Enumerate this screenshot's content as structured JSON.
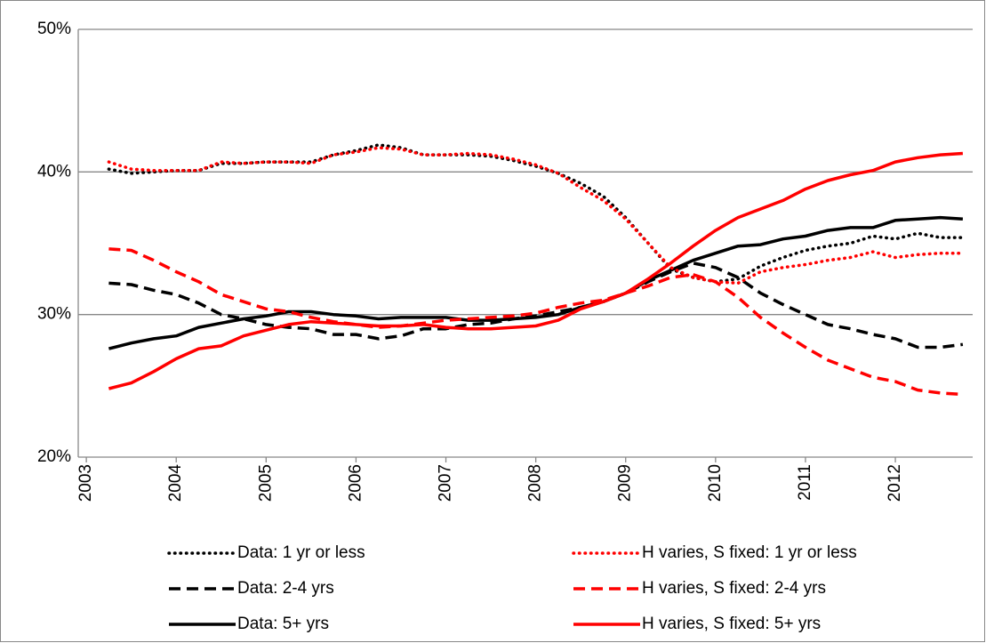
{
  "chart_data": {
    "type": "line",
    "x": [
      2003.25,
      2003.5,
      2003.75,
      2004,
      2004.25,
      2004.5,
      2004.75,
      2005,
      2005.25,
      2005.5,
      2005.75,
      2006,
      2006.25,
      2006.5,
      2006.75,
      2007,
      2007.25,
      2007.5,
      2007.75,
      2008,
      2008.25,
      2008.5,
      2008.75,
      2009,
      2009.25,
      2009.5,
      2009.75,
      2010,
      2010.25,
      2010.5,
      2010.75,
      2011,
      2011.25,
      2011.5,
      2011.75,
      2012,
      2012.25,
      2012.5,
      2012.75
    ],
    "xlim": [
      2002.91,
      2012.86
    ],
    "xticks": [
      2003,
      2004,
      2005,
      2006,
      2007,
      2008,
      2009,
      2010,
      2011,
      2012
    ],
    "ylim": [
      20,
      50
    ],
    "yticks": [
      {
        "value": 20,
        "label": "20%"
      },
      {
        "value": 30,
        "label": "30%"
      },
      {
        "value": 40,
        "label": "40%"
      },
      {
        "value": 50,
        "label": "50%"
      }
    ],
    "grid": true,
    "series": [
      {
        "name": "Data: 1 yr or less",
        "color": "#000000",
        "dash": "dotted",
        "values": [
          40.2,
          39.9,
          40.0,
          40.1,
          40.1,
          40.6,
          40.6,
          40.7,
          40.7,
          40.7,
          41.2,
          41.5,
          41.9,
          41.7,
          41.2,
          41.2,
          41.2,
          41.1,
          40.8,
          40.4,
          39.9,
          39.2,
          38.3,
          36.8,
          35.0,
          33.2,
          32.6,
          32.3,
          32.5,
          33.4,
          34.0,
          34.5,
          34.8,
          35.0,
          35.5,
          35.3,
          35.7,
          35.4,
          35.4
        ]
      },
      {
        "name": "Data: 2-4 yrs",
        "color": "#000000",
        "dash": "dashed",
        "values": [
          32.2,
          32.1,
          31.7,
          31.4,
          30.8,
          30.0,
          29.7,
          29.3,
          29.1,
          29.0,
          28.6,
          28.6,
          28.3,
          28.5,
          29.0,
          29.0,
          29.3,
          29.4,
          29.7,
          29.9,
          30.2,
          30.5,
          30.9,
          31.5,
          32.3,
          33.0,
          33.6,
          33.3,
          32.6,
          31.5,
          30.7,
          30.0,
          29.3,
          29.0,
          28.6,
          28.3,
          27.7,
          27.7,
          27.9
        ]
      },
      {
        "name": "Data: 5+ yrs",
        "color": "#000000",
        "dash": "solid",
        "values": [
          27.6,
          28.0,
          28.3,
          28.5,
          29.1,
          29.4,
          29.7,
          29.9,
          30.2,
          30.2,
          30.0,
          29.9,
          29.7,
          29.8,
          29.8,
          29.8,
          29.6,
          29.6,
          29.7,
          29.8,
          30.0,
          30.5,
          30.9,
          31.5,
          32.4,
          33.1,
          33.8,
          34.3,
          34.8,
          34.9,
          35.3,
          35.5,
          35.9,
          36.1,
          36.1,
          36.6,
          36.7,
          36.8,
          36.7
        ]
      },
      {
        "name": "H varies, S fixed: 1 yr or less",
        "color": "#ff0000",
        "dash": "dotted",
        "values": [
          40.7,
          40.2,
          40.1,
          40.1,
          40.1,
          40.7,
          40.6,
          40.7,
          40.7,
          40.6,
          41.2,
          41.4,
          41.7,
          41.6,
          41.2,
          41.2,
          41.3,
          41.2,
          40.9,
          40.5,
          39.9,
          38.9,
          38.0,
          36.7,
          35.0,
          33.3,
          32.6,
          32.3,
          32.2,
          33.0,
          33.3,
          33.5,
          33.8,
          34.0,
          34.4,
          34.0,
          34.2,
          34.3,
          34.3
        ]
      },
      {
        "name": "H varies, S fixed: 2-4 yrs",
        "color": "#ff0000",
        "dash": "dashed",
        "values": [
          34.6,
          34.5,
          33.8,
          33.0,
          32.3,
          31.4,
          30.9,
          30.4,
          30.2,
          29.8,
          29.5,
          29.3,
          29.1,
          29.2,
          29.4,
          29.6,
          29.7,
          29.8,
          29.9,
          30.1,
          30.5,
          30.8,
          31.0,
          31.5,
          32.0,
          32.6,
          32.8,
          32.3,
          31.2,
          29.8,
          28.7,
          27.7,
          26.8,
          26.2,
          25.6,
          25.3,
          24.7,
          24.5,
          24.4
        ]
      },
      {
        "name": "H varies, S fixed: 5+ yrs",
        "color": "#ff0000",
        "dash": "solid",
        "values": [
          24.8,
          25.2,
          26.0,
          26.9,
          27.6,
          27.8,
          28.5,
          28.9,
          29.3,
          29.5,
          29.4,
          29.3,
          29.2,
          29.2,
          29.3,
          29.1,
          29.0,
          29.0,
          29.1,
          29.2,
          29.6,
          30.4,
          30.9,
          31.5,
          32.5,
          33.6,
          34.8,
          35.9,
          36.8,
          37.4,
          38.0,
          38.8,
          39.4,
          39.8,
          40.1,
          40.7,
          41.0,
          41.2,
          41.3
        ]
      }
    ]
  }
}
